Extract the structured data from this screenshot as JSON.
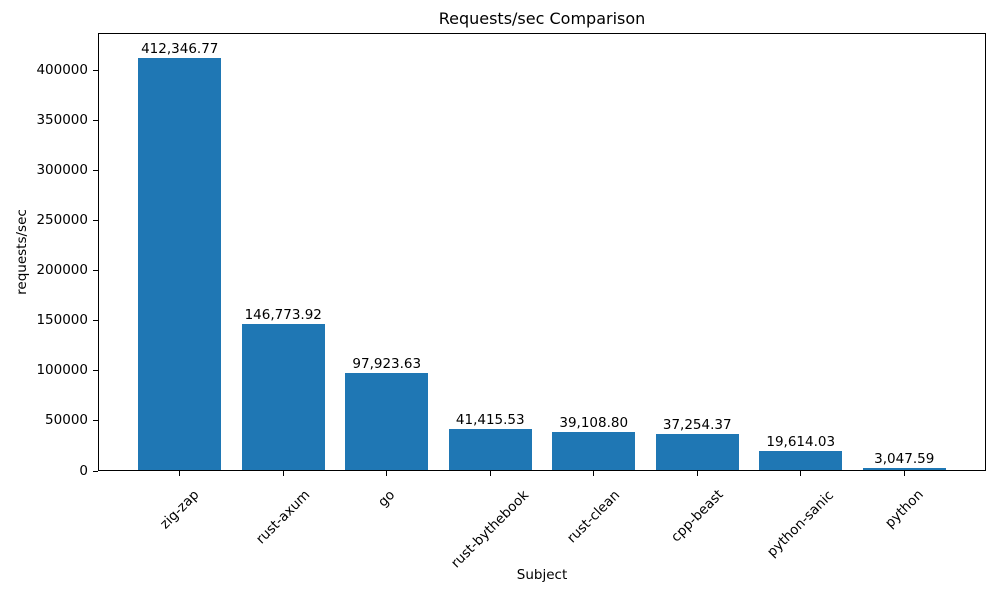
{
  "chart_data": {
    "type": "bar",
    "title": "Requests/sec Comparison",
    "xlabel": "Subject",
    "ylabel": "requests/sec",
    "categories": [
      "zig-zap",
      "rust-axum",
      "go",
      "rust-bythebook",
      "rust-clean",
      "cpp-beast",
      "python-sanic",
      "python"
    ],
    "values": [
      412346.77,
      146773.92,
      97923.63,
      41415.53,
      39108.8,
      37254.37,
      19614.03,
      3047.59
    ],
    "value_labels": [
      "412,346.77",
      "146,773.92",
      "97,923.63",
      "41,415.53",
      "39,108.80",
      "37,254.37",
      "19,614.03",
      "3,047.59"
    ],
    "yticks": [
      0,
      50000,
      100000,
      150000,
      200000,
      250000,
      300000,
      350000,
      400000
    ],
    "ylim": [
      0,
      437000
    ],
    "bar_color": "#1f77b4",
    "text_color": "#000000",
    "background_color": "#ffffff",
    "grid": false,
    "legend": null,
    "x_tick_rotation": 45
  }
}
